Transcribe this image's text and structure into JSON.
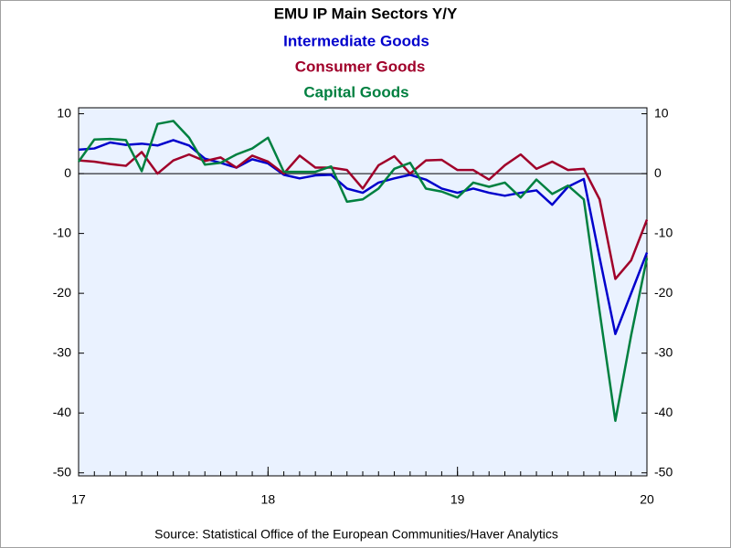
{
  "chart_data": {
    "type": "line",
    "title": "EMU IP Main Sectors Y/Y",
    "source": "Source:  Statistical Office of the European Communities/Haver Analytics",
    "x": [
      2017,
      2017.0833,
      2017.1667,
      2017.25,
      2017.3333,
      2017.4167,
      2017.5,
      2017.5833,
      2017.6667,
      2017.75,
      2017.8333,
      2017.9167,
      2018,
      2018.0833,
      2018.1667,
      2018.25,
      2018.3333,
      2018.4167,
      2018.5,
      2018.5833,
      2018.6667,
      2018.75,
      2018.8333,
      2018.9167,
      2019,
      2019.0833,
      2019.1667,
      2019.25,
      2019.3333,
      2019.4167,
      2019.5,
      2019.5833,
      2019.6667,
      2019.75,
      2019.8333,
      2019.9167,
      2020
    ],
    "xlim": [
      2017,
      2020
    ],
    "xticks": [
      {
        "value": 2017,
        "label": "17"
      },
      {
        "value": 2018,
        "label": "18"
      },
      {
        "value": 2019,
        "label": "19"
      },
      {
        "value": 2020,
        "label": "20"
      }
    ],
    "ylim": [
      -50.5,
      11
    ],
    "yticks": [
      10,
      0,
      -10,
      -20,
      -30,
      -40,
      -50
    ],
    "zero_line": true,
    "series": [
      {
        "name": "Intermediate Goods",
        "color": "#0000cc",
        "values": [
          4,
          4.2,
          5.2,
          4.8,
          5,
          4.7,
          5.6,
          4.7,
          2.5,
          1.8,
          1,
          2.4,
          1.7,
          -0.2,
          -0.8,
          -0.3,
          -0.2,
          -2.5,
          -3.2,
          -1.5,
          -0.8,
          -0.2,
          -1,
          -2.5,
          -3.2,
          -2.5,
          -3.2,
          -3.7,
          -3.2,
          -2.8,
          -5.2,
          -2.2,
          -0.9,
          -14,
          -26.8,
          -20,
          -13.2
        ]
      },
      {
        "name": "Consumer Goods",
        "color": "#a0002a",
        "values": [
          2.2,
          2,
          1.6,
          1.3,
          3.6,
          0,
          2.2,
          3.2,
          2.1,
          2.7,
          1,
          3,
          2,
          0,
          3,
          1,
          1,
          0.6,
          -2.5,
          1.4,
          2.9,
          0,
          2.2,
          2.3,
          0.6,
          0.6,
          -1,
          1.4,
          3.2,
          0.8,
          2,
          0.6,
          0.8,
          -4.3,
          -17.6,
          -14.5,
          -7.7
        ]
      },
      {
        "name": "Capital Goods",
        "color": "#008040",
        "values": [
          2,
          5.7,
          5.8,
          5.6,
          0.4,
          8.3,
          8.8,
          6,
          1.5,
          1.8,
          3.2,
          4.2,
          6,
          0.3,
          0.3,
          0.3,
          1.2,
          -4.7,
          -4.3,
          -2.5,
          0.8,
          1.8,
          -2.5,
          -3,
          -4,
          -1.5,
          -2.2,
          -1.5,
          -4,
          -1,
          -3.4,
          -2,
          -4.3,
          -23,
          -41.3,
          -27,
          -14.1
        ]
      }
    ]
  }
}
